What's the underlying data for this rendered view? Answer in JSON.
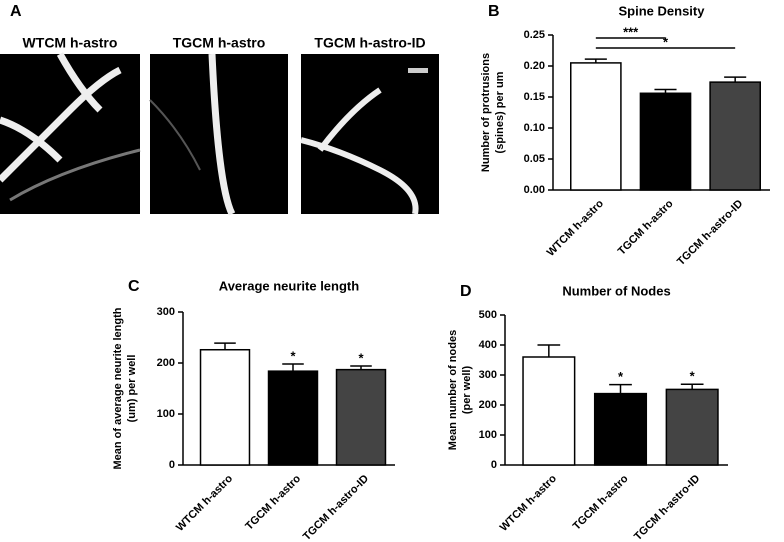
{
  "panel_a": {
    "label": "A",
    "images": [
      "WTCM h-astro",
      "TGCM h-astro",
      "TGCM h-astro-ID"
    ]
  },
  "chart_data": [
    {
      "type": "bar",
      "panel": "B",
      "title": "Spine Density",
      "ylabel": [
        "Number of protrusions",
        "(spines) per um"
      ],
      "categories": [
        "WTCM h-astro",
        "TGCM h-astro",
        "TGCM h-astro-ID"
      ],
      "values": [
        0.205,
        0.156,
        0.174
      ],
      "errors": [
        0.006,
        0.006,
        0.008
      ],
      "colors": [
        "#ffffff",
        "#000000",
        "#444444"
      ],
      "ylim": [
        0,
        0.25
      ],
      "yticks": [
        {
          "value": 0,
          "label": "0.00"
        },
        {
          "value": 0.05,
          "label": "0.05"
        },
        {
          "value": 0.1,
          "label": "0.10"
        },
        {
          "value": 0.15,
          "label": "0.15"
        },
        {
          "value": 0.2,
          "label": "0.20"
        },
        {
          "value": 0.25,
          "label": "0.25"
        }
      ],
      "brackets": [
        {
          "from": 0,
          "to": 1,
          "label": "***"
        },
        {
          "from": 0,
          "to": 2,
          "label": "*"
        }
      ]
    },
    {
      "type": "bar",
      "panel": "C",
      "title": "Average neurite length",
      "ylabel": [
        "Mean of average neurite length",
        "(um) per well"
      ],
      "categories": [
        "WTCM h-astro",
        "TGCM h-astro",
        "TGCM h-astro-ID"
      ],
      "values": [
        226,
        184,
        187
      ],
      "errors": [
        13,
        14,
        7
      ],
      "colors": [
        "#ffffff",
        "#000000",
        "#444444"
      ],
      "annotations": [
        null,
        "*",
        "*"
      ],
      "ylim": [
        0,
        300
      ],
      "yticks": [
        0,
        100,
        200,
        300
      ]
    },
    {
      "type": "bar",
      "panel": "D",
      "title": "Number of Nodes",
      "ylabel": [
        "Mean number of nodes",
        "(per well)"
      ],
      "categories": [
        "WTCM h-astro",
        "TGCM h-astro",
        "TGCM h-astro-ID"
      ],
      "values": [
        360,
        238,
        252
      ],
      "errors": [
        40,
        30,
        17
      ],
      "colors": [
        "#ffffff",
        "#000000",
        "#444444"
      ],
      "annotations": [
        null,
        "*",
        "*"
      ],
      "ylim": [
        0,
        500
      ],
      "yticks": [
        0,
        100,
        200,
        300,
        400,
        500
      ]
    }
  ]
}
